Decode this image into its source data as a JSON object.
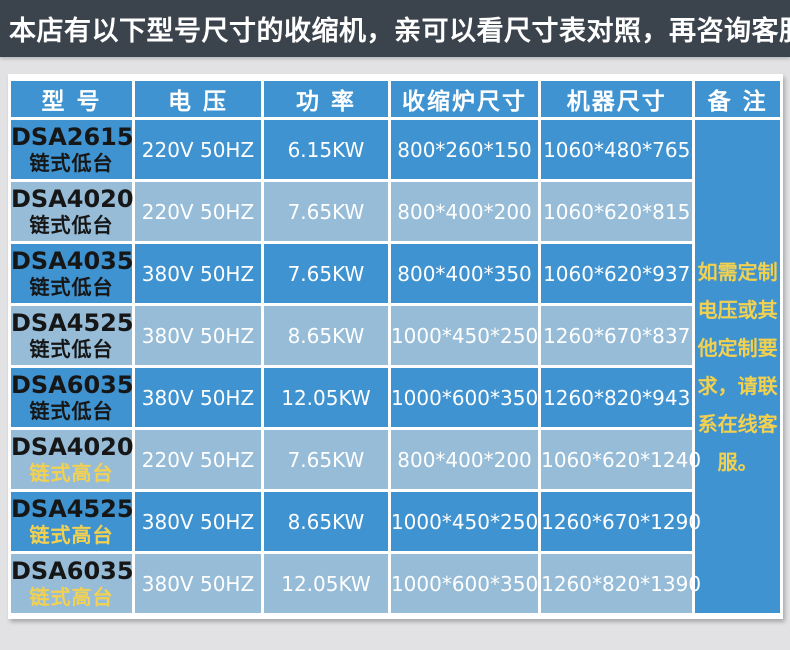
{
  "banner": {
    "text": "本店有以下型号尺寸的收缩机，亲可以看尺寸表对照，再咨询客服。"
  },
  "colors": {
    "banner_bg": "#3b434c",
    "table_blue": "#3f93d1",
    "table_blue_light": "#96bcd8",
    "highlight_yellow": "#f2d150",
    "page_bg": "#e2e2e4"
  },
  "table": {
    "headers": {
      "model": "型 号",
      "voltage": "电 压",
      "power": "功 率",
      "furnace_size": "收缩炉尺寸",
      "machine_size": "机器尺寸",
      "remarks": "备 注"
    },
    "rows": [
      {
        "model": "DSA2615",
        "type": "链式低台",
        "highlight": false,
        "voltage": "220V 50HZ",
        "power": "6.15KW",
        "furnace": "800*260*150",
        "machine": "1060*480*765"
      },
      {
        "model": "DSA4020",
        "type": "链式低台",
        "highlight": false,
        "voltage": "220V 50HZ",
        "power": "7.65KW",
        "furnace": "800*400*200",
        "machine": "1060*620*815"
      },
      {
        "model": "DSA4035",
        "type": "链式低台",
        "highlight": false,
        "voltage": "380V 50HZ",
        "power": "7.65KW",
        "furnace": "800*400*350",
        "machine": "1060*620*937"
      },
      {
        "model": "DSA4525",
        "type": "链式低台",
        "highlight": false,
        "voltage": "380V 50HZ",
        "power": "8.65KW",
        "furnace": "1000*450*250",
        "machine": "1260*670*837"
      },
      {
        "model": "DSA6035",
        "type": "链式低台",
        "highlight": false,
        "voltage": "380V 50HZ",
        "power": "12.05KW",
        "furnace": "1000*600*350",
        "machine": "1260*820*943"
      },
      {
        "model": "DSA4020",
        "type": "链式高台",
        "highlight": true,
        "voltage": "220V 50HZ",
        "power": "7.65KW",
        "furnace": "800*400*200",
        "machine": "1060*620*1240"
      },
      {
        "model": "DSA4525",
        "type": "链式高台",
        "highlight": true,
        "voltage": "380V 50HZ",
        "power": "8.65KW",
        "furnace": "1000*450*250",
        "machine": "1260*670*1290"
      },
      {
        "model": "DSA6035",
        "type": "链式高台",
        "highlight": true,
        "voltage": "380V 50HZ",
        "power": "12.05KW",
        "furnace": "1000*600*350",
        "machine": "1260*820*1390"
      }
    ],
    "note": "如需定制电压或其他定制要求，请联系在线客服。"
  }
}
